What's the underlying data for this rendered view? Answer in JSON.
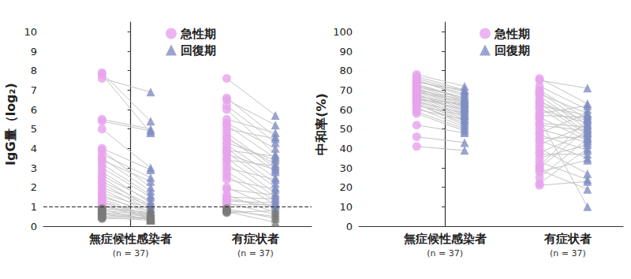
{
  "chart_data": [
    {
      "type": "scatter",
      "y_label": "IgG量（log₂)",
      "categories": [
        "無症候性感染者",
        "有症状者"
      ],
      "category_notes": [
        "(n = 37)",
        "(n = 37)"
      ],
      "ylim": [
        0,
        10.5
      ],
      "yticks": [
        0,
        1,
        2,
        3,
        4,
        5,
        6,
        7,
        8,
        9,
        10
      ],
      "legend": "top",
      "reference_line": {
        "value": 1,
        "line_style": "dashed",
        "color_below": "#7a7a7a"
      },
      "series": [
        {
          "name": "急性期",
          "color": "#e7a2ee",
          "marker": "circle",
          "values": [
            [
              7.9,
              7.8,
              7.6,
              5.5,
              5.4,
              5.0,
              4.0,
              3.9,
              3.7,
              3.5,
              3.4,
              3.2,
              3.0,
              2.8,
              2.6,
              2.5,
              2.3,
              2.2,
              2.0,
              1.9,
              1.7,
              1.6,
              1.5,
              1.4,
              1.3,
              1.2,
              1.1,
              1.05,
              0.9,
              0.85,
              0.8,
              0.7,
              0.65,
              0.6,
              0.5,
              0.45,
              0.4
            ],
            [
              7.6,
              6.6,
              6.5,
              6.2,
              6.0,
              5.5,
              5.3,
              5.2,
              5.0,
              4.8,
              4.6,
              4.5,
              4.3,
              4.2,
              4.0,
              3.9,
              3.8,
              3.7,
              3.5,
              3.4,
              3.2,
              3.0,
              2.8,
              2.6,
              2.4,
              2.0,
              1.9,
              1.6,
              1.5,
              1.4,
              1.3,
              1.2,
              1.1,
              0.9,
              0.8,
              0.75,
              0.7
            ]
          ]
        },
        {
          "name": "回復期",
          "color": "#7f8dc3",
          "marker": "triangle",
          "values": [
            [
              5.4,
              4.8,
              6.9,
              5.0,
              4.9,
              3.0,
              2.9,
              2.0,
              2.5,
              1.8,
              2.3,
              1.6,
              1.5,
              1.2,
              1.3,
              0.9,
              1.1,
              0.8,
              1.05,
              0.7,
              0.9,
              0.6,
              0.75,
              0.5,
              0.4,
              0.6,
              0.5,
              0.4,
              0.7,
              0.3,
              0.6,
              0.5,
              0.4,
              0.35,
              0.45,
              0.3,
              0.4
            ],
            [
              5.7,
              4.6,
              5.2,
              4.3,
              3.7,
              4.8,
              4.0,
              3.5,
              4.5,
              3.0,
              2.8,
              3.2,
              3.4,
              2.5,
              2.2,
              3.6,
              2.0,
              2.9,
              1.7,
              3.1,
              1.5,
              2.4,
              1.3,
              1.1,
              1.9,
              0.9,
              1.6,
              0.7,
              1.4,
              1.0,
              1.2,
              0.6,
              1.1,
              0.4,
              0.5,
              0.2,
              0.8
            ]
          ]
        }
      ]
    },
    {
      "type": "scatter",
      "y_label": "中和率(%)",
      "categories": [
        "無症候性感染者",
        "有症状者"
      ],
      "category_notes": [
        "(n = 37)",
        "(n = 37)"
      ],
      "ylim": [
        0,
        105
      ],
      "yticks": [
        0,
        10,
        20,
        30,
        40,
        50,
        60,
        70,
        80,
        90,
        100
      ],
      "legend": "top",
      "series": [
        {
          "name": "急性期",
          "color": "#e7a2ee",
          "marker": "circle",
          "values": [
            [
              78,
              77,
              76,
              75,
              75,
              74,
              73,
              73,
              72,
              72,
              71,
              71,
              70,
              70,
              69,
              69,
              68,
              68,
              67,
              67,
              66,
              66,
              65,
              65,
              64,
              64,
              63,
              63,
              62,
              61,
              60,
              59,
              58,
              52,
              46,
              41,
              70
            ],
            [
              76,
              75,
              72,
              70,
              69,
              68,
              67,
              65,
              64,
              63,
              62,
              61,
              60,
              58,
              57,
              56,
              55,
              53,
              52,
              50,
              48,
              47,
              45,
              44,
              42,
              40,
              38,
              37,
              35,
              33,
              31,
              30,
              29,
              28,
              25,
              22,
              21
            ]
          ]
        },
        {
          "name": "回復期",
          "color": "#7f8dc3",
          "marker": "triangle",
          "values": [
            [
              72,
              70,
              69,
              68,
              67,
              70,
              66,
              65,
              64,
              66,
              63,
              62,
              65,
              61,
              60,
              64,
              59,
              58,
              62,
              57,
              60,
              56,
              55,
              63,
              54,
              58,
              53,
              52,
              57,
              51,
              55,
              50,
              49,
              48,
              43,
              39,
              61
            ],
            [
              63,
              71,
              60,
              55,
              52,
              58,
              50,
              48,
              54,
              47,
              57,
              45,
              53,
              62,
              56,
              44,
              10,
              51,
              49,
              43,
              58,
              39,
              46,
              35,
              52,
              27,
              48,
              37,
              42,
              24,
              55,
              50,
              19,
              34,
              45,
              40,
              23
            ]
          ]
        }
      ]
    }
  ]
}
